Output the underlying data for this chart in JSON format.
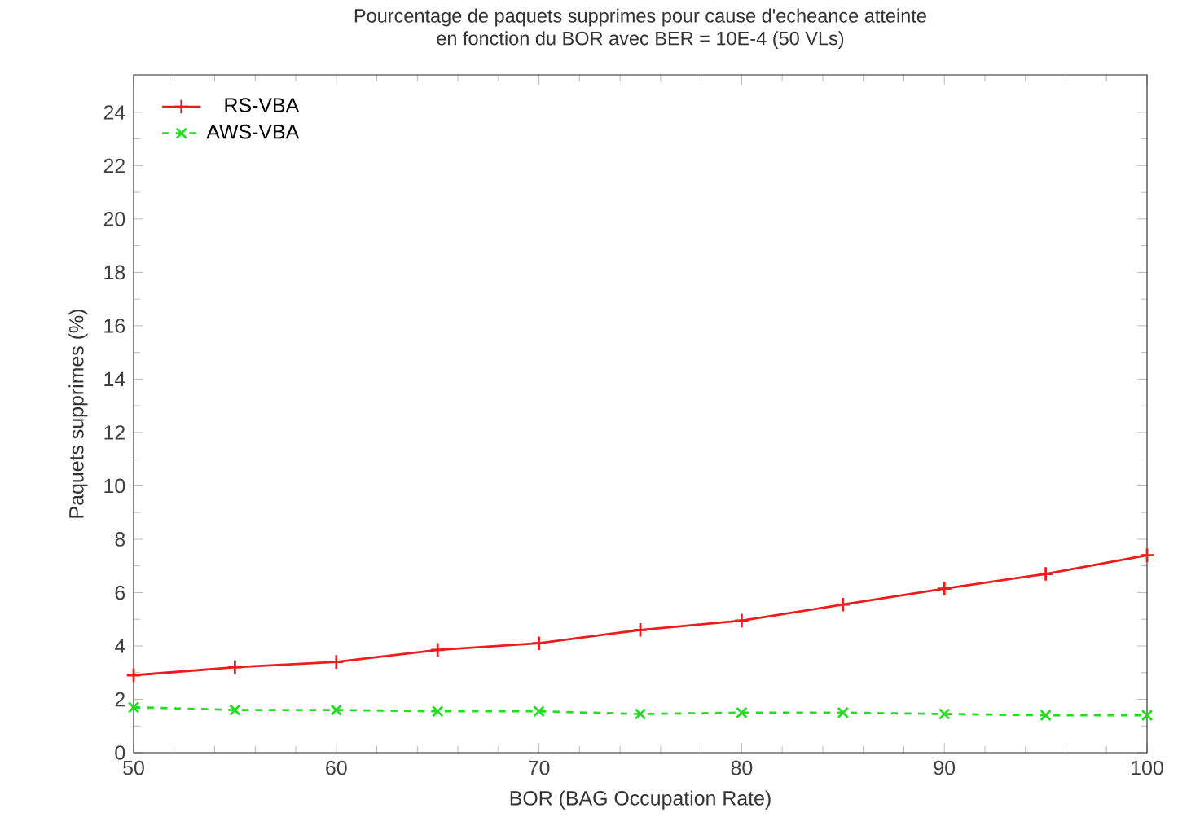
{
  "chart_data": {
    "type": "line",
    "title": "Pourcentage de paquets supprimes pour cause d'echeance atteinte\nen fonction du BOR avec BER = 10E-4 (50 VLs)",
    "xlabel": "BOR (BAG Occupation Rate)",
    "ylabel": "Paquets supprimes (%)",
    "x": [
      50,
      55,
      60,
      65,
      70,
      75,
      80,
      85,
      90,
      95,
      100
    ],
    "series": [
      {
        "name": "RS-VBA",
        "color": "#ee1c1c",
        "marker": "plus",
        "line_style": "solid",
        "values": [
          2.9,
          3.2,
          3.4,
          3.85,
          4.1,
          4.6,
          4.95,
          5.55,
          6.15,
          6.7,
          7.4
        ]
      },
      {
        "name": "AWS-VBA",
        "color": "#22dd22",
        "marker": "cross",
        "line_style": "dashed",
        "values": [
          1.7,
          1.6,
          1.6,
          1.55,
          1.55,
          1.45,
          1.5,
          1.5,
          1.45,
          1.4,
          1.4
        ]
      }
    ],
    "xlim": [
      50,
      100
    ],
    "ylim": [
      0,
      25.4
    ],
    "xticks": [
      50,
      60,
      70,
      80,
      90,
      100
    ],
    "yticks": [
      0,
      2,
      4,
      6,
      8,
      10,
      12,
      14,
      16,
      18,
      20,
      22,
      24
    ],
    "grid": false,
    "legend": "top left"
  }
}
